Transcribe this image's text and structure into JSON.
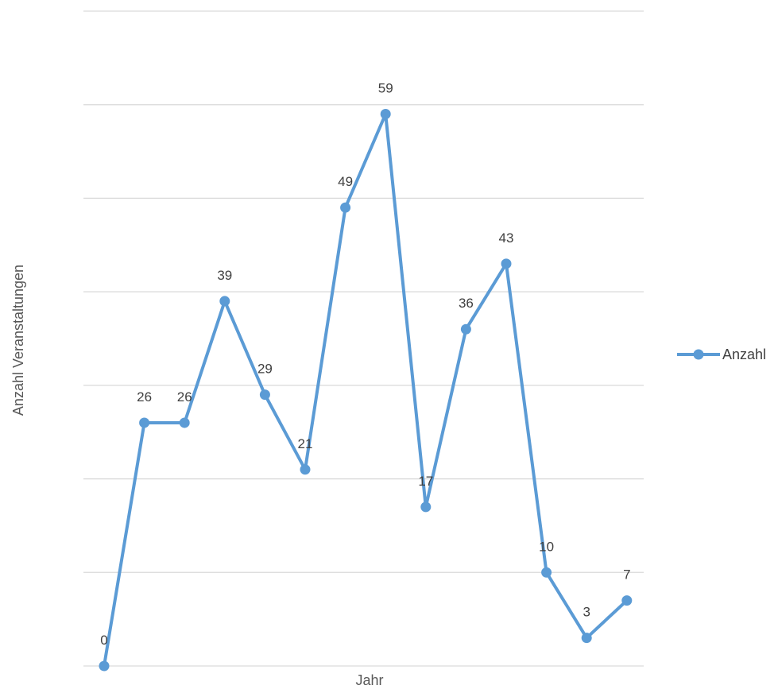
{
  "chart_data": {
    "type": "line",
    "title": "",
    "xlabel": "Jahr",
    "ylabel": "Anzahl Veranstaltungen",
    "ylim": [
      0,
      70
    ],
    "grid": true,
    "legend_position": "right",
    "series_color": "#5b9bd5",
    "series": [
      {
        "name": "Anzahl",
        "values": [
          0,
          26,
          26,
          39,
          29,
          21,
          49,
          59,
          17,
          36,
          43,
          10,
          3,
          7
        ],
        "labels": [
          "0",
          "26",
          "26",
          "39",
          "29",
          "21",
          "49",
          "59",
          "17",
          "36",
          "43",
          "10",
          "3",
          "7"
        ]
      }
    ]
  }
}
